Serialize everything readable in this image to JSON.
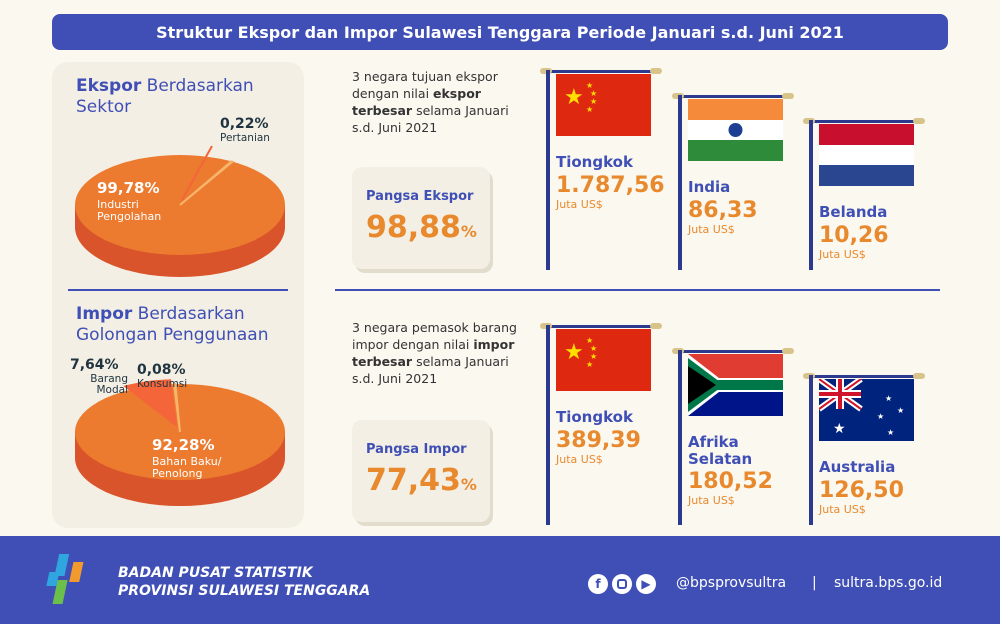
{
  "title": "Struktur Ekspor dan Impor Sulawesi Tenggara Periode Januari s.d. Juni 2021",
  "colors": {
    "blue": "#3f4fb5",
    "orange": "#e8892e",
    "pie_main": "#ec7a2f",
    "pie_side": "#d9542a",
    "pie_small": "#f4653a"
  },
  "export_pie": {
    "title_bold": "Ekspor",
    "title_rest": " Berdasarkan Sektor",
    "slices": [
      {
        "label": "Industri Pengolahan",
        "percent_text": "99,78%",
        "value": 99.78
      },
      {
        "label": "Pertanian",
        "percent_text": "0,22%",
        "value": 0.22
      }
    ]
  },
  "import_pie": {
    "title_bold": "Impor",
    "title_rest": " Berdasarkan Golongan Penggunaan",
    "slices": [
      {
        "label": "Bahan Baku/ Penolong",
        "percent_text": "92,28%",
        "value": 92.28
      },
      {
        "label": "Barang Modal",
        "percent_text": "7,64%",
        "value": 7.64
      },
      {
        "label": "Konsumsi",
        "percent_text": "0,08%",
        "value": 0.08
      }
    ]
  },
  "chart_data": [
    {
      "type": "pie",
      "title": "Ekspor Berdasarkan Sektor",
      "categories": [
        "Industri Pengolahan",
        "Pertanian"
      ],
      "values": [
        99.78,
        0.22
      ]
    },
    {
      "type": "pie",
      "title": "Impor Berdasarkan Golongan Penggunaan",
      "categories": [
        "Bahan Baku/Penolong",
        "Barang Modal",
        "Konsumsi"
      ],
      "values": [
        92.28,
        7.64,
        0.08
      ]
    }
  ],
  "export": {
    "desc_1": "3 negara tujuan ekspor dengan nilai ",
    "desc_bold": "ekspor terbesar",
    "desc_2": " selama Januari s.d. Juni 2021",
    "share_label": "Pangsa Ekspor",
    "share_value": "98,88",
    "share_unit": "%",
    "countries": [
      {
        "name": "Tiongkok",
        "value": "1.787,56",
        "unit": "Juta US$",
        "flag": "china"
      },
      {
        "name": "India",
        "value": "86,33",
        "unit": "Juta US$",
        "flag": "india"
      },
      {
        "name": "Belanda",
        "value": "10,26",
        "unit": "Juta US$",
        "flag": "netherlands"
      }
    ]
  },
  "import": {
    "desc_1": "3 negara pemasok barang impor dengan nilai ",
    "desc_bold": "impor terbesar",
    "desc_2": " selama Januari s.d. Juni 2021",
    "share_label": "Pangsa Impor",
    "share_value": "77,43",
    "share_unit": "%",
    "countries": [
      {
        "name": "Tiongkok",
        "value": "389,39",
        "unit": "Juta US$",
        "flag": "china"
      },
      {
        "name": "Afrika Selatan",
        "value": "180,52",
        "unit": "Juta US$",
        "flag": "south-africa"
      },
      {
        "name": "Australia",
        "value": "126,50",
        "unit": "Juta US$",
        "flag": "australia"
      }
    ]
  },
  "footer": {
    "org_line1": "BADAN PUSAT STATISTIK",
    "org_line2": "PROVINSI SULAWESI TENGGARA",
    "social_icons": [
      "facebook-icon",
      "instagram-icon",
      "youtube-icon"
    ],
    "handle": "@bpsprovsultra",
    "separator": "|",
    "website": "sultra.bps.go.id"
  }
}
